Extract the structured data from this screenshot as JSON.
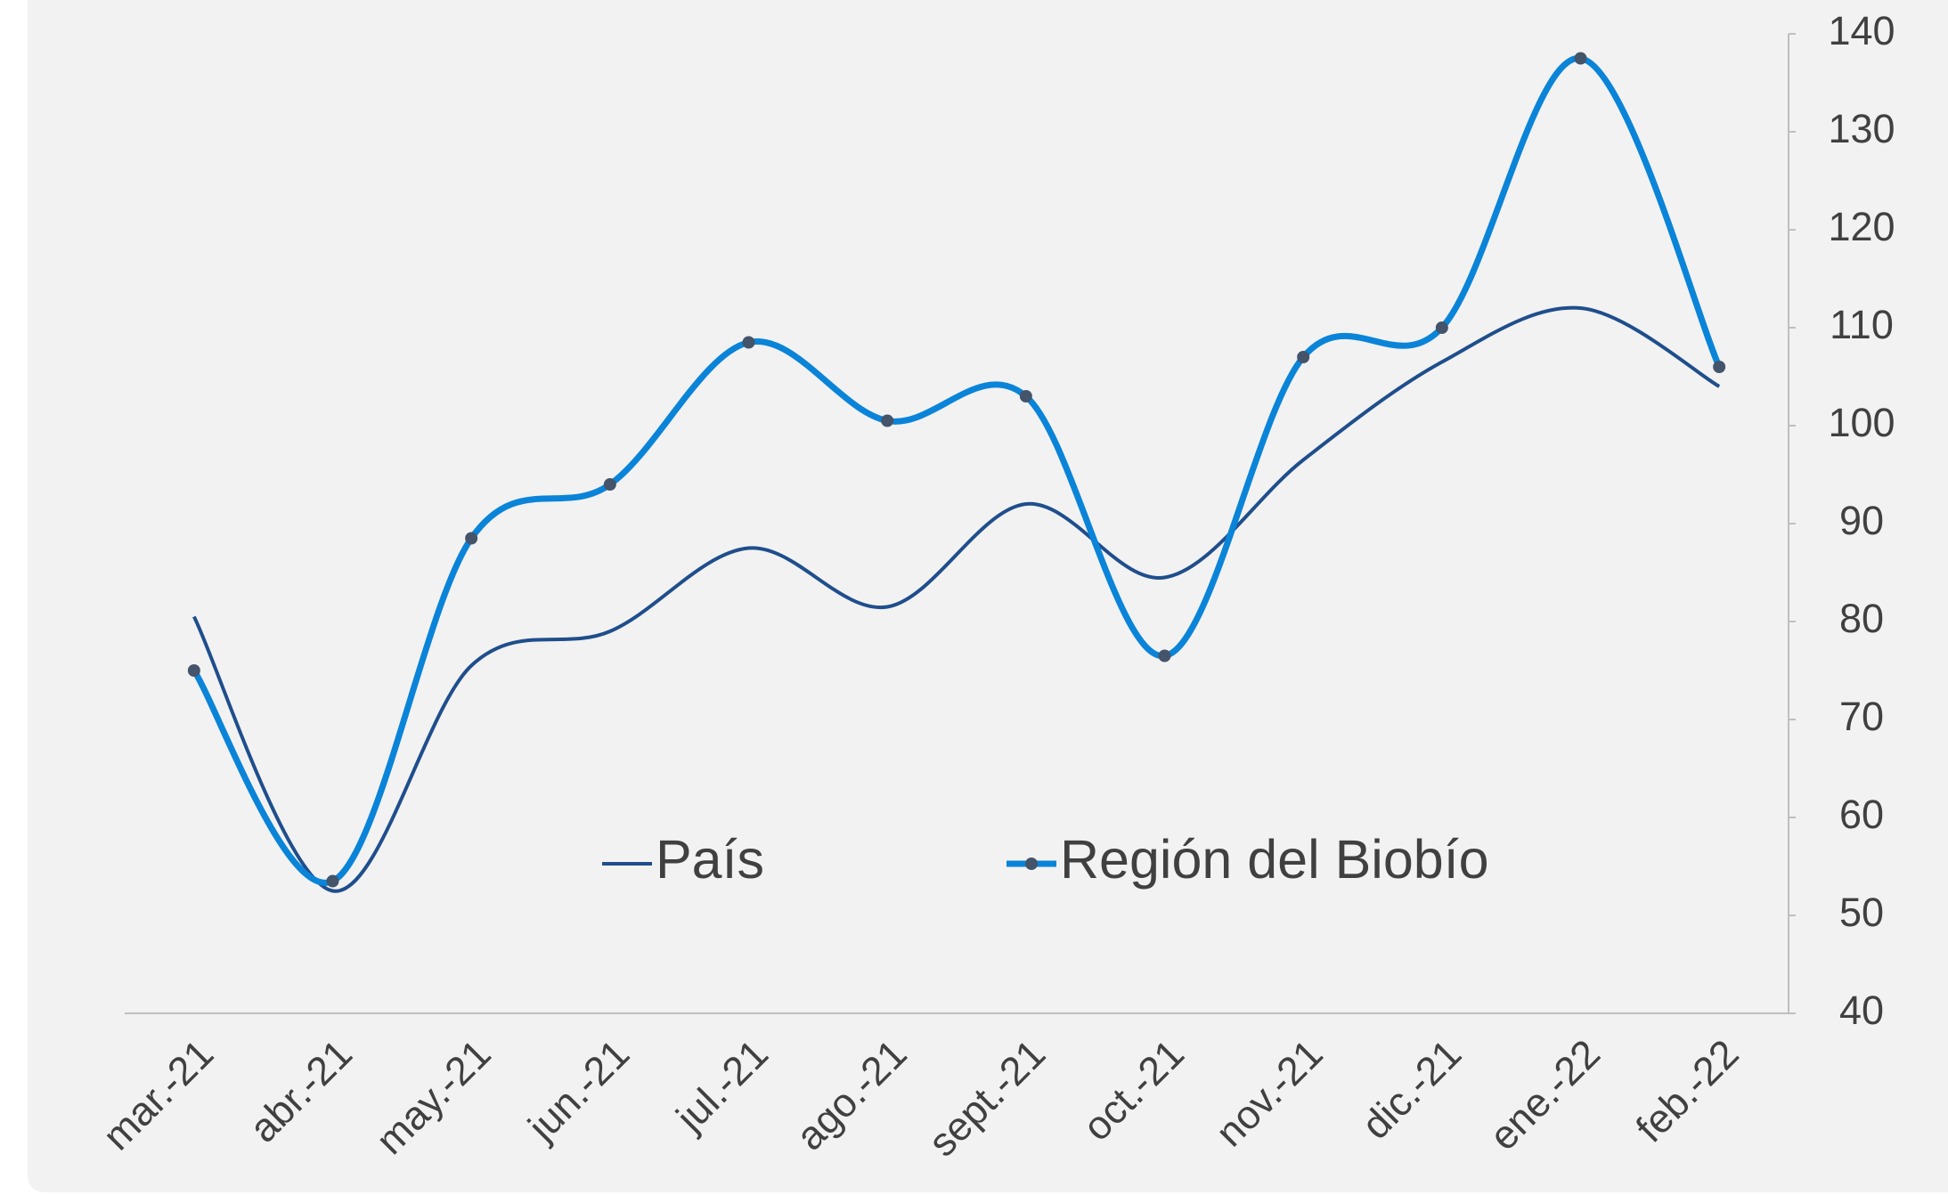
{
  "chart_data": {
    "type": "line",
    "categories": [
      "mar.-21",
      "abr.-21",
      "may.-21",
      "jun.-21",
      "jul.-21",
      "ago.-21",
      "sept.-21",
      "oct.-21",
      "nov.-21",
      "dic.-21",
      "ene.-22",
      "feb.-22"
    ],
    "series": [
      {
        "name": "País",
        "color": "#1f4e8c",
        "values": [
          80.5,
          52.5,
          75.5,
          79,
          87.5,
          81.5,
          92,
          84.5,
          96.5,
          106.5,
          112,
          104
        ]
      },
      {
        "name": "Región del Biobío",
        "color": "#0a84d8",
        "values": [
          75,
          53.5,
          88.5,
          94,
          108.5,
          100.5,
          103,
          76.5,
          107,
          110,
          137.5,
          106
        ]
      }
    ],
    "ylim": [
      40,
      140
    ],
    "yticks": [
      40,
      50,
      60,
      70,
      80,
      90,
      100,
      110,
      120,
      130,
      140
    ],
    "smooth": true
  }
}
